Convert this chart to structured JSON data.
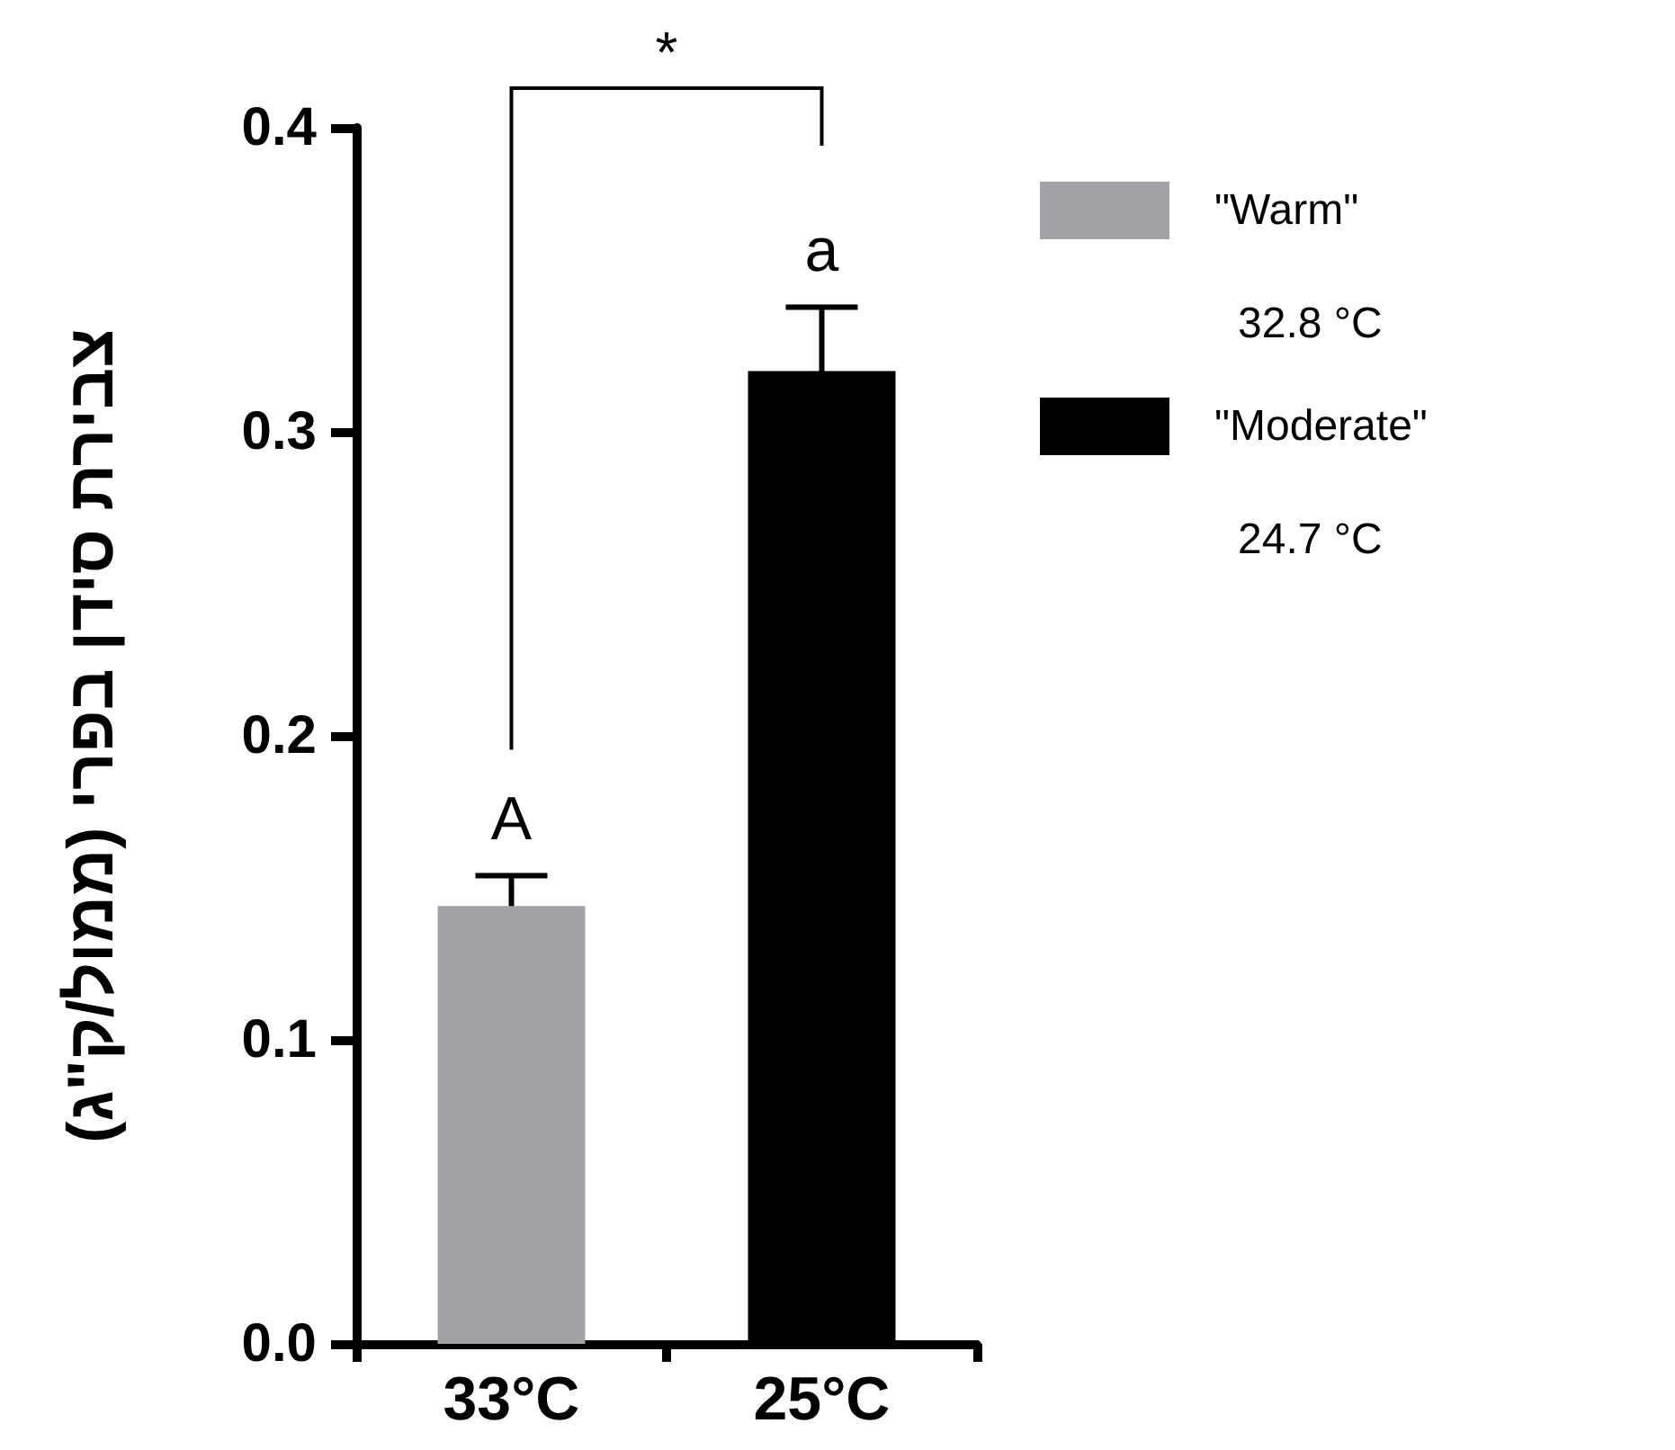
{
  "chart_data": {
    "type": "bar",
    "categories": [
      "33°C",
      "25°C"
    ],
    "ylabel": "צבירת סידן בפרי (ממול/ק\"ג)",
    "ylim": [
      0,
      0.4
    ],
    "yticks": [
      {
        "value": 0,
        "label": "0.0"
      },
      {
        "value": 0.1,
        "label": "0.1"
      },
      {
        "value": 0.2,
        "label": "0.2"
      },
      {
        "value": 0.3,
        "label": "0.3"
      },
      {
        "value": 0.4,
        "label": "0.4"
      }
    ],
    "series": [
      {
        "name": "\"Warm\"",
        "color": "#a3a2a7",
        "values": [
          0.144,
          null
        ],
        "errors": [
          0.01,
          null
        ]
      },
      {
        "name": "\"Moderate\"",
        "color": "#000000",
        "values": [
          null,
          0.32
        ],
        "errors": [
          null,
          0.021
        ]
      }
    ],
    "annotations": [
      {
        "text": "A",
        "x": "33°C",
        "y": 0.154
      },
      {
        "text": "a",
        "x": "25°C",
        "y": 0.341
      },
      "*",
      "32.8 °C",
      "24.7 °C"
    ],
    "grid": false,
    "legend": "right"
  }
}
